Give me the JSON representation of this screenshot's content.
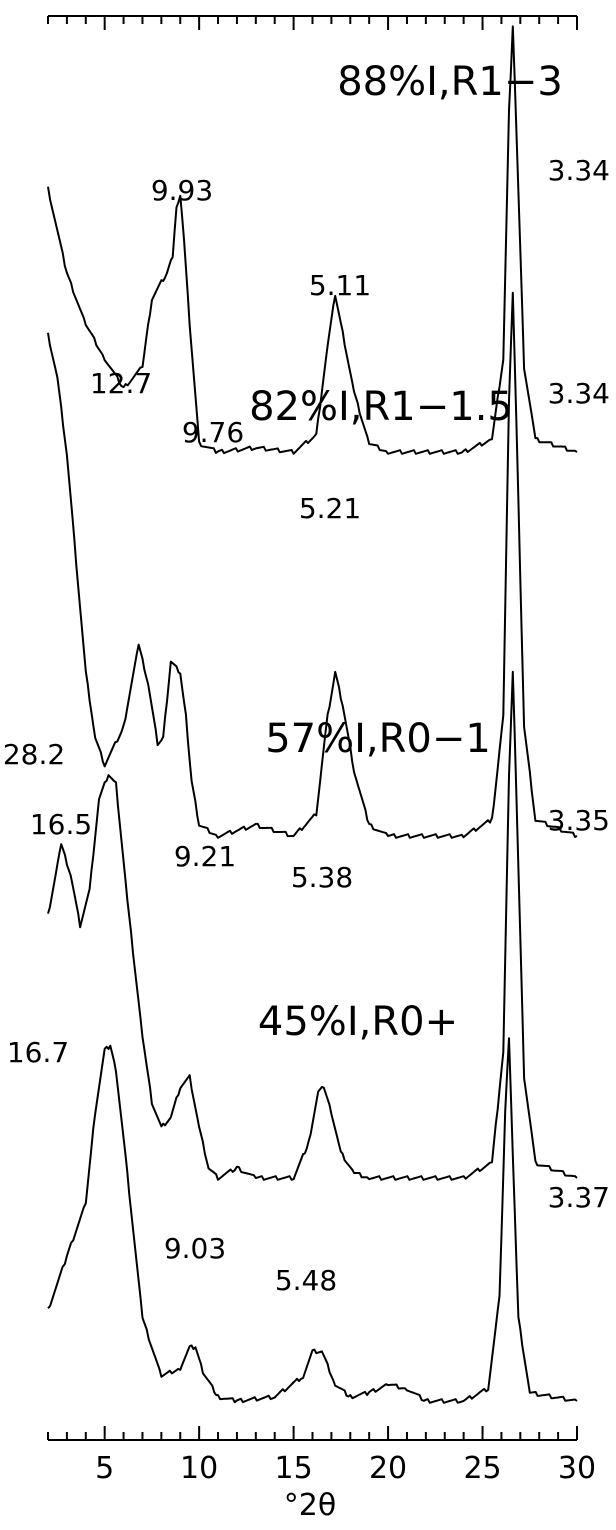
{
  "chart_data": {
    "type": "line",
    "xlabel": "°2θ",
    "xlim": [
      2,
      30
    ],
    "x_ticks": [
      "5",
      "10",
      "15",
      "20",
      "25",
      "30"
    ],
    "y_axis": "none (stacked offset traces, arbitrary intensity)",
    "grid": false,
    "legend": "none",
    "series": [
      {
        "name": "88%I,R1−3",
        "x": [
          2.0,
          3.0,
          4.0,
          5.0,
          6.0,
          7.0,
          7.5,
          8.0,
          8.3,
          8.6,
          8.8,
          9.0,
          9.2,
          9.5,
          10.0,
          11.0,
          13.0,
          15.0,
          16.2,
          16.8,
          17.2,
          17.6,
          18.2,
          19.0,
          20.0,
          24.0,
          25.5,
          26.1,
          26.4,
          26.6,
          26.8,
          27.2,
          27.8,
          30.0
        ],
        "y": [
          0.62,
          0.42,
          0.3,
          0.22,
          0.15,
          0.2,
          0.36,
          0.4,
          0.42,
          0.46,
          0.58,
          0.6,
          0.5,
          0.3,
          0.02,
          0.0,
          0.01,
          0.0,
          0.04,
          0.25,
          0.37,
          0.28,
          0.14,
          0.02,
          0.0,
          0.0,
          0.03,
          0.22,
          0.8,
          1.0,
          0.75,
          0.2,
          0.03,
          0.0
        ],
        "annotations": [
          {
            "text": "9.93",
            "x": 8.9
          },
          {
            "text": "5.11",
            "x": 17.3
          },
          {
            "text": "3.34",
            "x": 26.7
          }
        ]
      },
      {
        "name": "82%I,R1−1.5",
        "x": [
          2.0,
          2.5,
          3.0,
          3.5,
          4.0,
          4.5,
          5.0,
          6.0,
          6.8,
          7.3,
          7.8,
          8.1,
          8.5,
          9.0,
          9.3,
          9.6,
          10.0,
          11.0,
          13.0,
          15.0,
          16.2,
          16.8,
          17.2,
          17.6,
          18.2,
          19.0,
          20.0,
          24.0,
          25.5,
          26.1,
          26.4,
          26.6,
          26.8,
          27.2,
          27.8,
          30.0
        ],
        "y": [
          0.92,
          0.84,
          0.7,
          0.5,
          0.3,
          0.18,
          0.13,
          0.2,
          0.35,
          0.28,
          0.17,
          0.18,
          0.32,
          0.3,
          0.22,
          0.1,
          0.02,
          0.0,
          0.02,
          0.0,
          0.04,
          0.22,
          0.3,
          0.24,
          0.12,
          0.02,
          0.0,
          0.0,
          0.03,
          0.22,
          0.8,
          1.0,
          0.75,
          0.2,
          0.03,
          0.0
        ],
        "annotations": [
          {
            "text": "12.7",
            "x": 6.9
          },
          {
            "text": "9.76",
            "x": 9.0
          },
          {
            "text": "5.21",
            "x": 17.0
          },
          {
            "text": "3.34",
            "x": 26.7
          }
        ]
      },
      {
        "name": "57%I,R0−1",
        "x": [
          2.0,
          2.7,
          3.2,
          3.7,
          4.2,
          4.7,
          5.2,
          5.6,
          6.2,
          7.0,
          7.5,
          8.0,
          8.5,
          9.0,
          9.5,
          10.0,
          10.5,
          11.0,
          12.0,
          13.0,
          15.0,
          15.8,
          16.3,
          16.6,
          17.0,
          17.5,
          18.2,
          19.0,
          24.0,
          25.5,
          26.1,
          26.4,
          26.6,
          26.8,
          27.2,
          27.8,
          30.0
        ],
        "y": [
          0.52,
          0.66,
          0.6,
          0.5,
          0.57,
          0.75,
          0.8,
          0.78,
          0.55,
          0.28,
          0.15,
          0.1,
          0.12,
          0.18,
          0.2,
          0.1,
          0.02,
          0.0,
          0.02,
          0.0,
          0.0,
          0.07,
          0.17,
          0.18,
          0.13,
          0.05,
          0.01,
          0.0,
          0.0,
          0.03,
          0.25,
          0.8,
          1.0,
          0.75,
          0.2,
          0.03,
          0.0
        ],
        "annotations": [
          {
            "text": "28.2",
            "x": 3.1
          },
          {
            "text": "16.5",
            "x": 5.3
          },
          {
            "text": "9.21",
            "x": 9.6
          },
          {
            "text": "5.38",
            "x": 16.4
          },
          {
            "text": "3.35",
            "x": 26.5
          }
        ]
      },
      {
        "name": "45%I,R0+",
        "x": [
          2.0,
          3.0,
          4.0,
          4.5,
          5.0,
          5.3,
          5.6,
          6.2,
          7.0,
          8.0,
          9.0,
          9.5,
          9.8,
          10.2,
          11.0,
          12.0,
          14.0,
          15.5,
          16.0,
          16.5,
          17.2,
          18.0,
          19.0,
          20.0,
          21.0,
          22.0,
          24.0,
          25.3,
          25.9,
          26.2,
          26.4,
          26.6,
          26.9,
          27.5,
          30.0
        ],
        "y": [
          0.22,
          0.35,
          0.48,
          0.7,
          0.85,
          0.86,
          0.8,
          0.55,
          0.2,
          0.06,
          0.08,
          0.13,
          0.13,
          0.07,
          0.01,
          0.0,
          0.01,
          0.06,
          0.12,
          0.12,
          0.04,
          0.01,
          0.02,
          0.04,
          0.03,
          0.0,
          0.0,
          0.03,
          0.25,
          0.7,
          0.88,
          0.6,
          0.2,
          0.02,
          0.0
        ],
        "annotations": [
          {
            "text": "16.7",
            "x": 5.3
          },
          {
            "text": "9.03",
            "x": 9.8
          },
          {
            "text": "5.48",
            "x": 16.2
          },
          {
            "text": "3.37",
            "x": 26.4
          }
        ]
      }
    ]
  }
}
